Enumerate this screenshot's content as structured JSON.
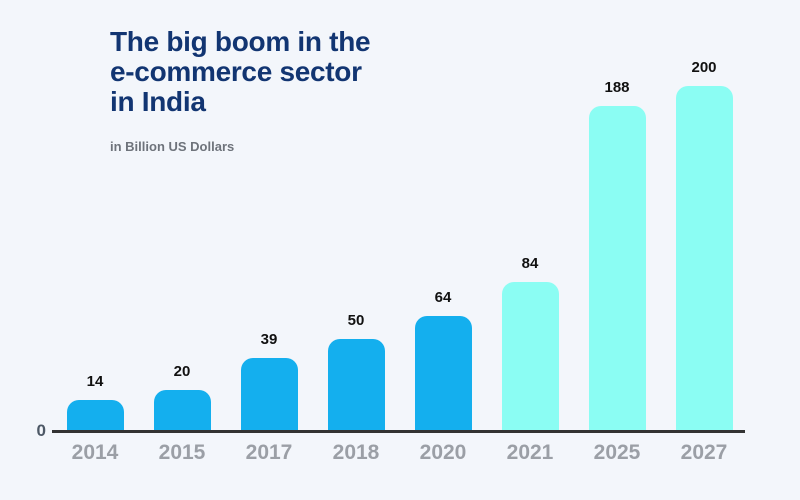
{
  "header": {
    "title_lines": [
      "The big boom in the",
      "e-commerce sector",
      "in India"
    ],
    "title_full": "The big boom in the e-commerce sector in India",
    "subtitle": "in Billion US Dollars"
  },
  "axis": {
    "zero_label": "0"
  },
  "colors": {
    "background": "#F3F6FB",
    "title": "#123572",
    "subtitle": "#6E737B",
    "bar_blue_historical": "#14AFEE",
    "bar_cyan_projected": "#8BFDF3",
    "axis_line": "#333333",
    "x_tick_label": "#9B9FA6",
    "value_label": "#111111"
  },
  "chart_data": {
    "type": "bar",
    "title": "The big boom in the e-commerce sector in India",
    "unit": "Billion US Dollars",
    "categories": [
      "2014",
      "2015",
      "2017",
      "2018",
      "2020",
      "2021",
      "2025",
      "2027"
    ],
    "values": [
      14,
      20,
      39,
      50,
      64,
      84,
      188,
      200
    ],
    "bar_colors": [
      "#14AFEE",
      "#14AFEE",
      "#14AFEE",
      "#14AFEE",
      "#14AFEE",
      "#8BFDF3",
      "#8BFDF3",
      "#8BFDF3"
    ],
    "value_labels": [
      "14",
      "20",
      "39",
      "50",
      "64",
      "84",
      "188",
      "200"
    ],
    "xlabel": "",
    "ylabel": "Billion US Dollars",
    "ylim": [
      0,
      210
    ],
    "baseline_label": "0",
    "grid": false,
    "legend": false,
    "bar_corner_radius": "rounded-top"
  }
}
